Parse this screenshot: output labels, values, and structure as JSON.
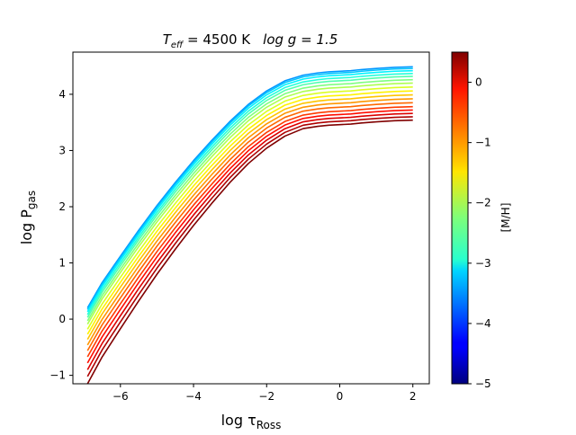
{
  "chart_data": {
    "type": "line",
    "title": {
      "left": "T",
      "left_sub": "eff",
      "left_rest": " = 4500 K",
      "right": "log g = 1.5"
    },
    "xlabel": {
      "main": "log τ",
      "sub": "Ross"
    },
    "ylabel": {
      "main": "log P",
      "sub": "gas"
    },
    "xlim": [
      -7.3,
      2.45
    ],
    "ylim": [
      -1.15,
      4.75
    ],
    "xticks": [
      -6,
      -4,
      -2,
      0,
      2
    ],
    "xtick_labels": [
      "−6",
      "−4",
      "−2",
      "0",
      "2"
    ],
    "yticks": [
      -1,
      0,
      1,
      2,
      3,
      4
    ],
    "ytick_labels": [
      "−1",
      "0",
      "1",
      "2",
      "3",
      "4"
    ],
    "colorbar": {
      "label": "[M/H]",
      "range": [
        -5,
        0.5
      ],
      "ticks": [
        -5,
        -4,
        -3,
        -2,
        -1,
        0
      ],
      "tick_labels": [
        "−5",
        "−4",
        "−3",
        "−2",
        "−1",
        "0"
      ],
      "colormap": "jet"
    },
    "series_common": {
      "x": [
        -6.9,
        -6.5,
        -6.0,
        -5.5,
        -5.0,
        -4.5,
        -4.0,
        -3.5,
        -3.0,
        -2.5,
        -2.0,
        -1.5,
        -1.0,
        -0.6,
        -0.3,
        0.0,
        0.3,
        0.6,
        1.0,
        1.5,
        2.0
      ],
      "notes": "each series = base curve shifted by its offset; top curve (M/H ≈ -3.5) is the reference"
    },
    "reference_curve_y": [
      0.2,
      0.65,
      1.12,
      1.58,
      2.02,
      2.43,
      2.82,
      3.18,
      3.52,
      3.82,
      4.06,
      4.24,
      4.34,
      4.38,
      4.4,
      4.41,
      4.42,
      4.44,
      4.46,
      4.48,
      4.49
    ],
    "series": [
      {
        "metallicity": -3.5,
        "offset": 0.0,
        "low_tail": 0.0
      },
      {
        "metallicity": -3.25,
        "offset": -0.03,
        "low_tail": 0.0
      },
      {
        "metallicity": -3.0,
        "offset": -0.07,
        "low_tail": 0.0
      },
      {
        "metallicity": -2.75,
        "offset": -0.12,
        "low_tail": 0.0
      },
      {
        "metallicity": -2.5,
        "offset": -0.17,
        "low_tail": 0.0
      },
      {
        "metallicity": -2.25,
        "offset": -0.23,
        "low_tail": 0.0
      },
      {
        "metallicity": -2.0,
        "offset": -0.29,
        "low_tail": 0.0
      },
      {
        "metallicity": -1.75,
        "offset": -0.36,
        "low_tail": 0.02
      },
      {
        "metallicity": -1.5,
        "offset": -0.43,
        "low_tail": 0.04
      },
      {
        "metallicity": -1.25,
        "offset": -0.5,
        "low_tail": 0.06
      },
      {
        "metallicity": -1.0,
        "offset": -0.57,
        "low_tail": 0.09
      },
      {
        "metallicity": -0.75,
        "offset": -0.64,
        "low_tail": 0.12
      },
      {
        "metallicity": -0.5,
        "offset": -0.71,
        "low_tail": 0.16
      },
      {
        "metallicity": -0.25,
        "offset": -0.77,
        "low_tail": 0.21
      },
      {
        "metallicity": 0.0,
        "offset": -0.83,
        "low_tail": 0.27
      },
      {
        "metallicity": 0.25,
        "offset": -0.89,
        "low_tail": 0.33
      },
      {
        "metallicity": 0.5,
        "offset": -0.95,
        "low_tail": 0.4
      }
    ]
  }
}
